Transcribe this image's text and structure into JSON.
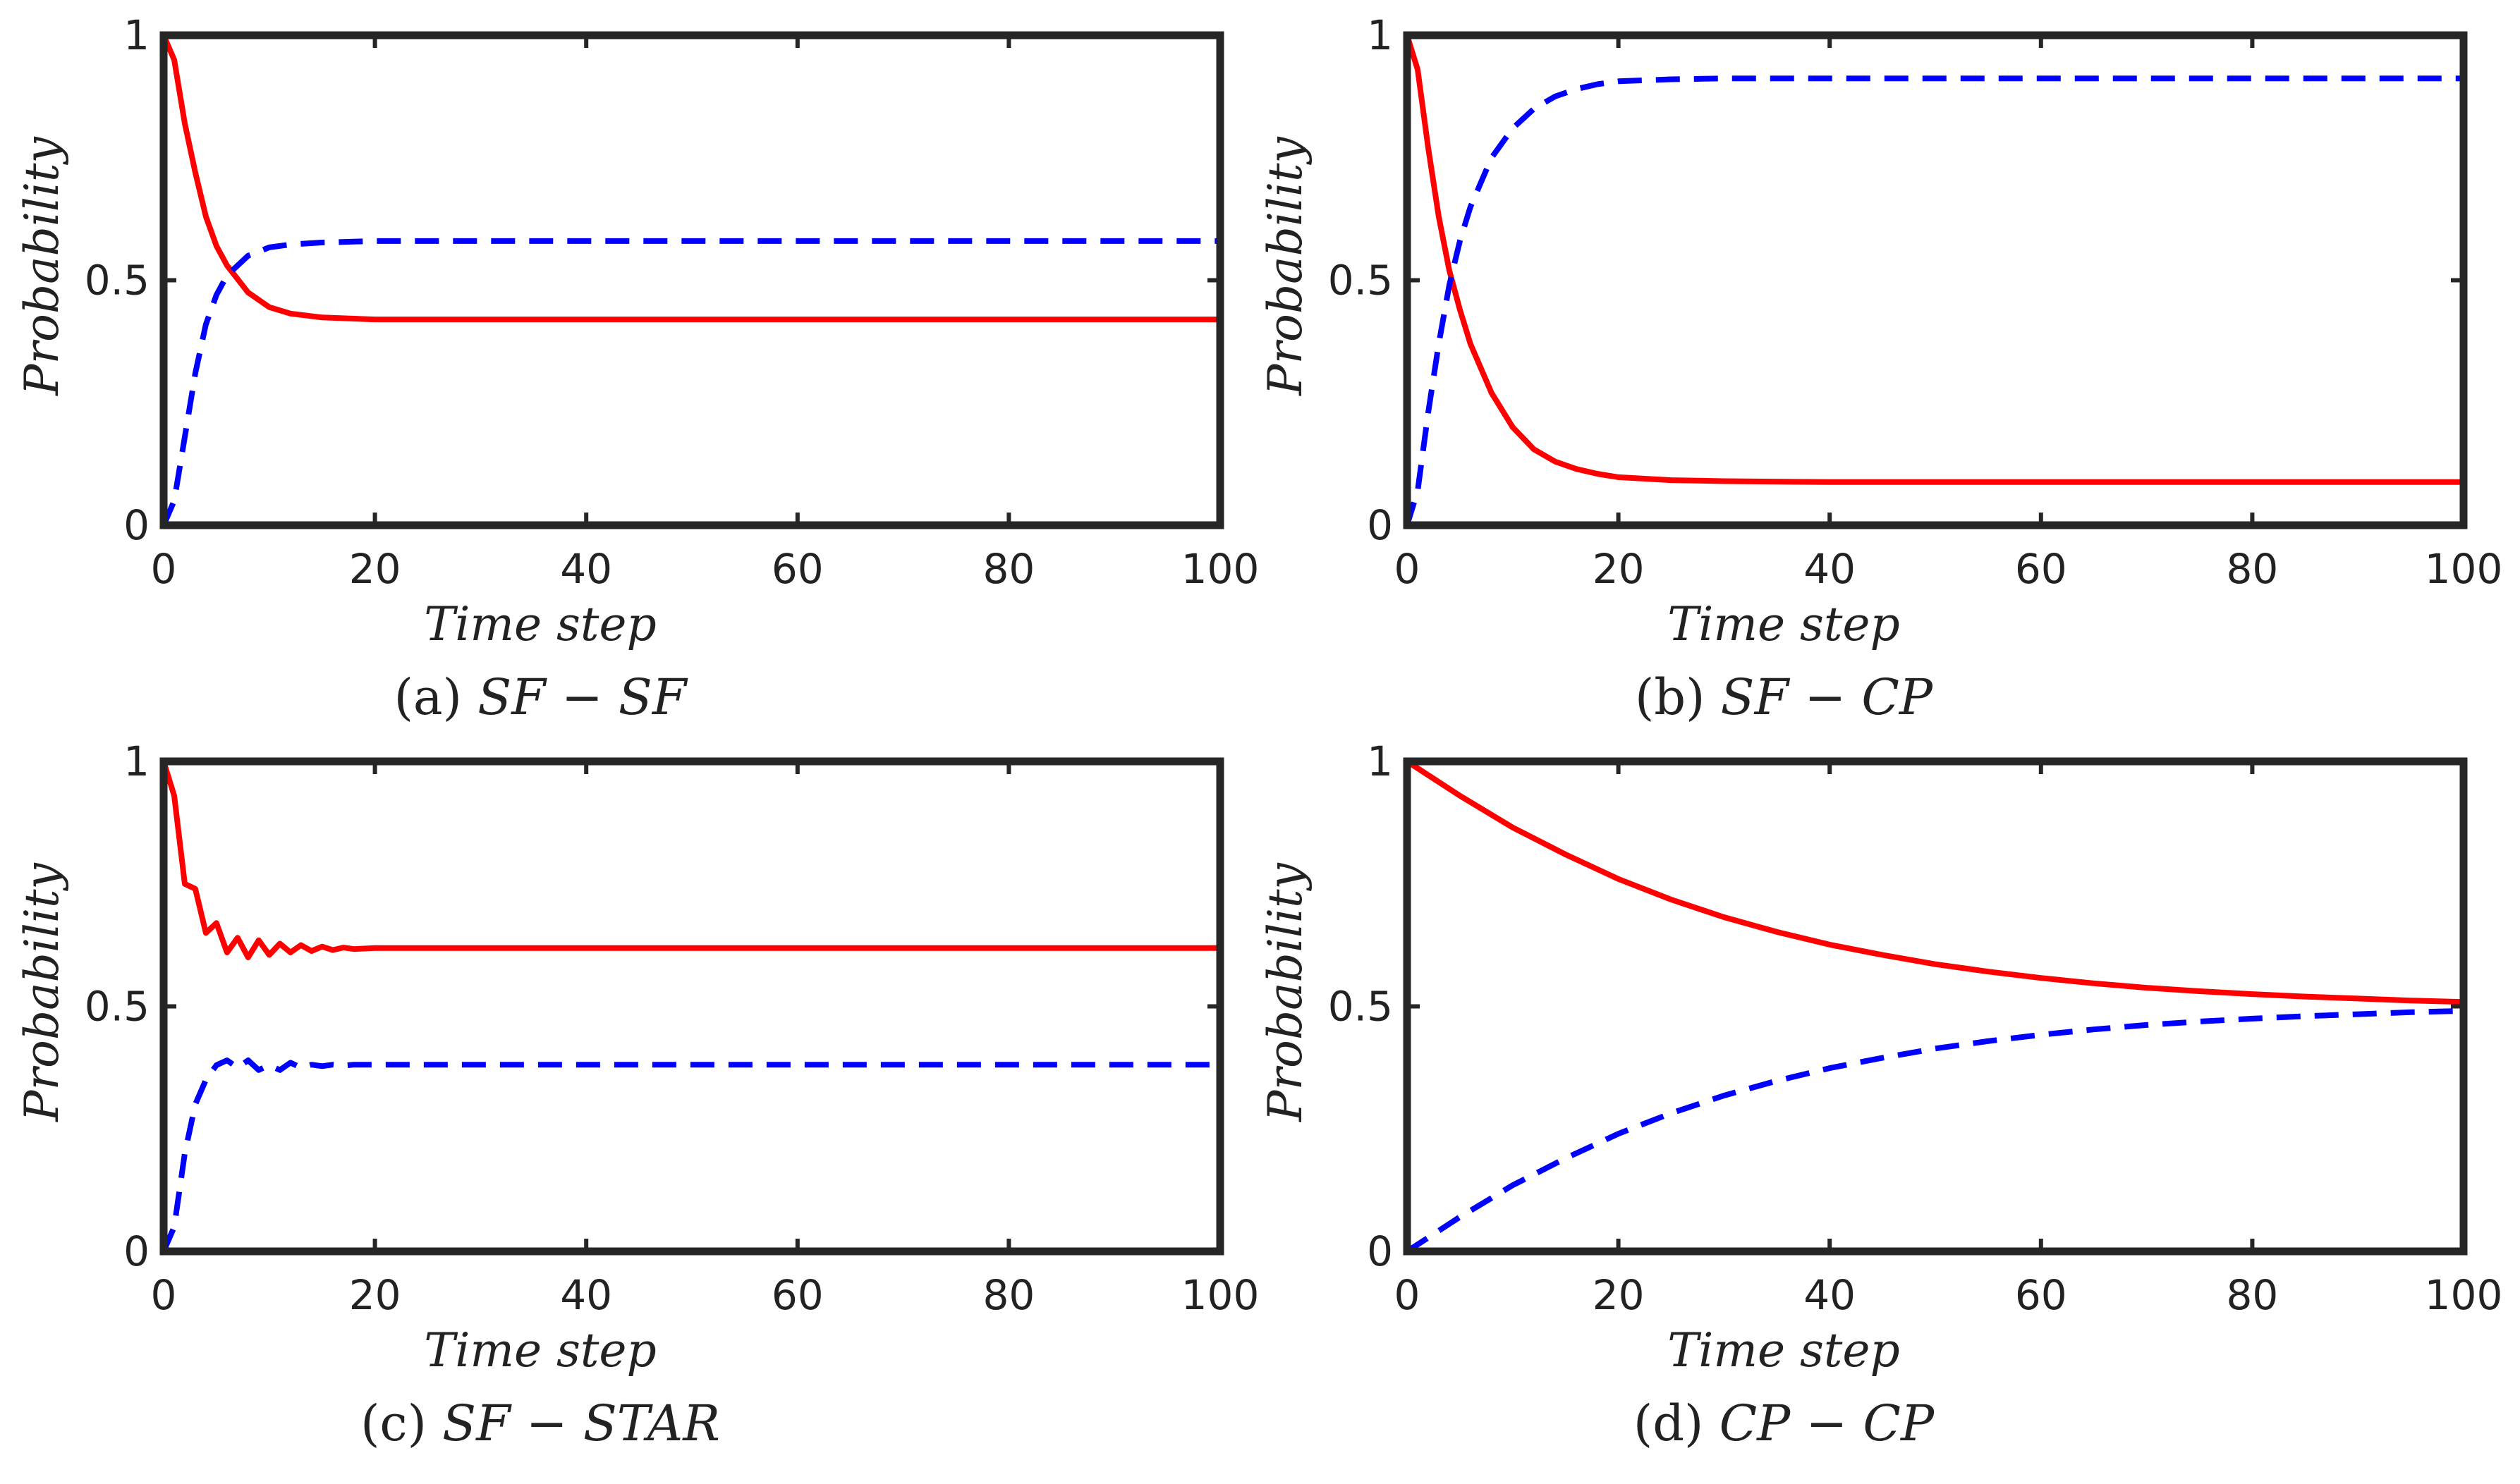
{
  "chart_data": [
    {
      "type": "line",
      "panel": "a",
      "caption_tag": "(a)",
      "caption_name": "SF − SF",
      "xlabel": "Time step",
      "ylabel": "Probability",
      "xlim": [
        0,
        100
      ],
      "ylim": [
        0,
        1
      ],
      "xticks": [
        "0",
        "20",
        "40",
        "60",
        "80",
        "100"
      ],
      "yticks": [
        "0",
        "0.5",
        "1"
      ],
      "series": [
        {
          "name": "solid",
          "color": "#ff0000",
          "dash": false,
          "x": [
            0,
            1,
            2,
            3,
            4,
            5,
            6,
            8,
            10,
            12,
            15,
            20,
            30,
            50,
            100
          ],
          "values": [
            1.0,
            0.95,
            0.82,
            0.72,
            0.63,
            0.57,
            0.53,
            0.475,
            0.445,
            0.432,
            0.424,
            0.42,
            0.42,
            0.42,
            0.42
          ]
        },
        {
          "name": "dashed",
          "color": "#0000ff",
          "dash": true,
          "x": [
            0,
            1,
            2,
            3,
            4,
            5,
            6,
            8,
            10,
            12,
            15,
            20,
            30,
            50,
            100
          ],
          "values": [
            0.0,
            0.05,
            0.18,
            0.31,
            0.41,
            0.47,
            0.51,
            0.55,
            0.567,
            0.573,
            0.577,
            0.58,
            0.58,
            0.58,
            0.58
          ]
        }
      ]
    },
    {
      "type": "line",
      "panel": "b",
      "caption_tag": "(b)",
      "caption_name": "SF − CP",
      "xlabel": "Time step",
      "ylabel": "Probability",
      "xlim": [
        0,
        100
      ],
      "ylim": [
        0,
        1
      ],
      "xticks": [
        "0",
        "20",
        "40",
        "60",
        "80",
        "100"
      ],
      "yticks": [
        "0",
        "0.5",
        "1"
      ],
      "series": [
        {
          "name": "solid",
          "color": "#ff0000",
          "dash": false,
          "x": [
            0,
            1,
            2,
            3,
            4,
            5,
            6,
            8,
            10,
            12,
            14,
            16,
            18,
            20,
            25,
            30,
            40,
            60,
            100
          ],
          "values": [
            1.0,
            0.93,
            0.77,
            0.63,
            0.52,
            0.44,
            0.37,
            0.27,
            0.2,
            0.155,
            0.13,
            0.115,
            0.105,
            0.098,
            0.092,
            0.09,
            0.088,
            0.088,
            0.088
          ]
        },
        {
          "name": "dashed",
          "color": "#0000ff",
          "dash": true,
          "x": [
            0,
            1,
            2,
            3,
            4,
            5,
            6,
            8,
            10,
            12,
            14,
            16,
            18,
            20,
            25,
            30,
            40,
            60,
            100
          ],
          "values": [
            0.0,
            0.07,
            0.23,
            0.37,
            0.49,
            0.58,
            0.65,
            0.75,
            0.81,
            0.85,
            0.875,
            0.89,
            0.9,
            0.906,
            0.91,
            0.912,
            0.912,
            0.912,
            0.912
          ]
        }
      ]
    },
    {
      "type": "line",
      "panel": "c",
      "caption_tag": "(c)",
      "caption_name": "SF − STAR",
      "xlabel": "Time step",
      "ylabel": "Probability",
      "xlim": [
        0,
        100
      ],
      "ylim": [
        0,
        1
      ],
      "xticks": [
        "0",
        "20",
        "40",
        "60",
        "80",
        "100"
      ],
      "yticks": [
        "0",
        "0.5",
        "1"
      ],
      "series": [
        {
          "name": "solid",
          "color": "#ff0000",
          "dash": false,
          "x": [
            0,
            1,
            2,
            3,
            4,
            5,
            6,
            7,
            8,
            9,
            10,
            11,
            12,
            13,
            14,
            15,
            16,
            17,
            18,
            20,
            25,
            30,
            50,
            100
          ],
          "values": [
            1.0,
            0.93,
            0.75,
            0.74,
            0.65,
            0.67,
            0.61,
            0.64,
            0.6,
            0.635,
            0.605,
            0.628,
            0.61,
            0.625,
            0.613,
            0.622,
            0.615,
            0.62,
            0.617,
            0.619,
            0.619,
            0.619,
            0.619,
            0.619
          ]
        },
        {
          "name": "dashed",
          "color": "#0000ff",
          "dash": true,
          "x": [
            0,
            1,
            2,
            3,
            4,
            5,
            6,
            7,
            8,
            9,
            10,
            11,
            12,
            13,
            14,
            15,
            16,
            17,
            18,
            20,
            25,
            30,
            50,
            100
          ],
          "values": [
            0.0,
            0.05,
            0.2,
            0.3,
            0.35,
            0.38,
            0.39,
            0.375,
            0.39,
            0.37,
            0.38,
            0.37,
            0.385,
            0.375,
            0.381,
            0.378,
            0.381,
            0.379,
            0.381,
            0.381,
            0.381,
            0.381,
            0.381,
            0.381
          ]
        }
      ]
    },
    {
      "type": "line",
      "panel": "d",
      "caption_tag": "(d)",
      "caption_name": "CP − CP",
      "xlabel": "Time step",
      "ylabel": "Probability",
      "xlim": [
        0,
        100
      ],
      "ylim": [
        0,
        1
      ],
      "xticks": [
        "0",
        "20",
        "40",
        "60",
        "80",
        "100"
      ],
      "yticks": [
        "0",
        "0.5",
        "1"
      ],
      "series": [
        {
          "name": "solid",
          "color": "#ff0000",
          "dash": false,
          "x": [
            0,
            5,
            10,
            15,
            20,
            25,
            30,
            35,
            40,
            45,
            50,
            55,
            60,
            65,
            70,
            75,
            80,
            85,
            90,
            95,
            100
          ],
          "values": [
            1.0,
            0.93,
            0.865,
            0.81,
            0.76,
            0.718,
            0.682,
            0.652,
            0.626,
            0.605,
            0.586,
            0.571,
            0.558,
            0.547,
            0.538,
            0.531,
            0.525,
            0.52,
            0.516,
            0.512,
            0.509
          ]
        },
        {
          "name": "dashed",
          "color": "#0000ff",
          "dash": true,
          "x": [
            0,
            5,
            10,
            15,
            20,
            25,
            30,
            35,
            40,
            45,
            50,
            55,
            60,
            65,
            70,
            75,
            80,
            85,
            90,
            95,
            100
          ],
          "values": [
            0.0,
            0.07,
            0.135,
            0.19,
            0.24,
            0.282,
            0.318,
            0.348,
            0.374,
            0.395,
            0.414,
            0.429,
            0.442,
            0.453,
            0.462,
            0.469,
            0.475,
            0.48,
            0.484,
            0.488,
            0.491
          ]
        }
      ]
    }
  ]
}
